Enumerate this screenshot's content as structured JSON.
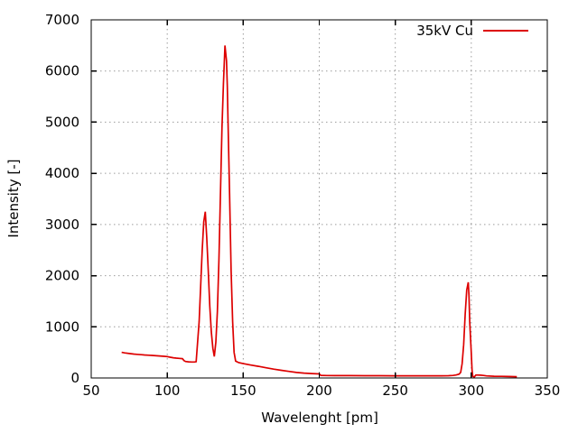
{
  "figure": {
    "background": "#ffffff",
    "border_color": "#000000",
    "grid_color": "#9c9c9c",
    "text_color": "#000000"
  },
  "chart_data": {
    "type": "line",
    "title": "",
    "xlabel": "Wavelenght [pm]",
    "ylabel": "Intensity [-]",
    "xlim": [
      50,
      350
    ],
    "ylim": [
      0,
      7000
    ],
    "x_ticks": [
      50,
      100,
      150,
      200,
      250,
      300,
      350
    ],
    "y_ticks": [
      0,
      1000,
      2000,
      3000,
      4000,
      5000,
      6000,
      7000
    ],
    "grid": "dotted gray at every tick, mirrored inward tick marks on all four borders",
    "legend": {
      "position": "top-right-inside",
      "box": false
    },
    "series": [
      {
        "name": "35kV Cu",
        "color": "#dd0000",
        "points": [
          [
            70,
            500
          ],
          [
            72,
            490
          ],
          [
            75,
            478
          ],
          [
            78,
            468
          ],
          [
            80,
            462
          ],
          [
            83,
            455
          ],
          [
            85,
            450
          ],
          [
            88,
            444
          ],
          [
            90,
            440
          ],
          [
            93,
            434
          ],
          [
            95,
            430
          ],
          [
            98,
            424
          ],
          [
            100,
            418
          ],
          [
            102,
            405
          ],
          [
            104,
            395
          ],
          [
            106,
            388
          ],
          [
            108,
            383
          ],
          [
            110,
            378
          ],
          [
            111,
            340
          ],
          [
            112,
            322
          ],
          [
            114,
            315
          ],
          [
            116,
            312
          ],
          [
            118,
            312
          ],
          [
            119,
            320
          ],
          [
            120,
            700
          ],
          [
            121,
            1100
          ],
          [
            122,
            1800
          ],
          [
            123,
            2500
          ],
          [
            124,
            3050
          ],
          [
            125,
            3250
          ],
          [
            126,
            2750
          ],
          [
            127,
            2100
          ],
          [
            128,
            1400
          ],
          [
            129,
            900
          ],
          [
            130,
            580
          ],
          [
            131,
            420
          ],
          [
            132,
            700
          ],
          [
            133,
            1300
          ],
          [
            134,
            2300
          ],
          [
            135,
            3600
          ],
          [
            136,
            4900
          ],
          [
            137,
            5750
          ],
          [
            138,
            6500
          ],
          [
            139,
            6200
          ],
          [
            139.5,
            5700
          ],
          [
            140,
            5000
          ],
          [
            141,
            3600
          ],
          [
            142,
            2100
          ],
          [
            143,
            1100
          ],
          [
            144,
            500
          ],
          [
            145,
            330
          ],
          [
            147,
            300
          ],
          [
            150,
            280
          ],
          [
            155,
            252
          ],
          [
            160,
            228
          ],
          [
            165,
            200
          ],
          [
            170,
            172
          ],
          [
            175,
            150
          ],
          [
            180,
            128
          ],
          [
            185,
            108
          ],
          [
            190,
            95
          ],
          [
            195,
            86
          ],
          [
            200,
            80
          ],
          [
            201,
            52
          ],
          [
            205,
            48
          ],
          [
            210,
            46
          ],
          [
            220,
            45
          ],
          [
            230,
            44
          ],
          [
            240,
            44
          ],
          [
            250,
            43
          ],
          [
            260,
            43
          ],
          [
            270,
            42
          ],
          [
            280,
            42
          ],
          [
            285,
            44
          ],
          [
            288,
            50
          ],
          [
            290,
            58
          ],
          [
            292,
            75
          ],
          [
            293,
            110
          ],
          [
            294,
            280
          ],
          [
            295,
            650
          ],
          [
            296,
            1250
          ],
          [
            297,
            1720
          ],
          [
            298,
            1870
          ],
          [
            298.5,
            1600
          ],
          [
            299,
            1100
          ],
          [
            300,
            500
          ],
          [
            300.5,
            150
          ],
          [
            301,
            30
          ],
          [
            302,
            20
          ],
          [
            303,
            58
          ],
          [
            306,
            55
          ],
          [
            308,
            50
          ],
          [
            310,
            40
          ],
          [
            315,
            34
          ],
          [
            320,
            32
          ],
          [
            325,
            28
          ],
          [
            330,
            25
          ]
        ]
      }
    ]
  }
}
